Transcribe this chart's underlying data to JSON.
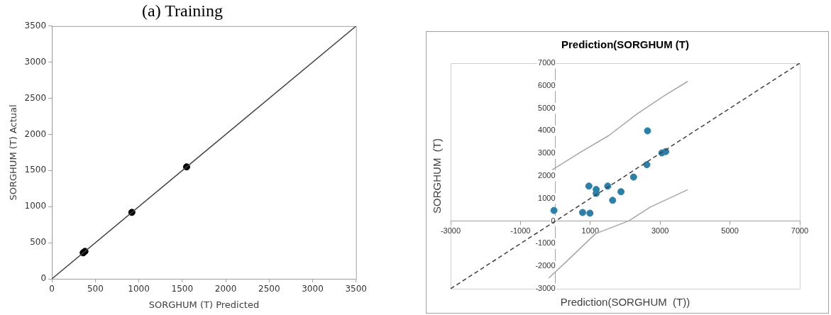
{
  "chart_data": [
    {
      "type": "scatter",
      "title": "(a) Training",
      "xlabel": "SORGHUM (T) Predicted",
      "ylabel": "SORGHUM (T) Actual",
      "xlim": [
        0,
        3500
      ],
      "ylim": [
        0,
        3500
      ],
      "xticks": [
        0,
        500,
        1000,
        1500,
        2000,
        2500,
        3000,
        3500
      ],
      "yticks": [
        0,
        500,
        1000,
        1500,
        2000,
        2500,
        3000,
        3500
      ],
      "grid": false,
      "legend": false,
      "marker": "circle",
      "series": [
        {
          "type": "line",
          "color": "#404040",
          "x": [
            0,
            3500
          ],
          "values": [
            0,
            3500
          ],
          "marker": "none",
          "line_style": "solid"
        },
        {
          "type": "scatter",
          "color": "#000000",
          "x": [
            360,
            380,
            920,
            1550
          ],
          "values": [
            360,
            380,
            920,
            1550
          ]
        }
      ]
    },
    {
      "type": "scatter",
      "title": "Prediction(SORGHUM (T)",
      "xlabel": "Prediction(SORGHUM  (T))",
      "ylabel": "SORGHUM  (T)",
      "xlim": [
        -3000,
        7000
      ],
      "ylim": [
        -3000,
        7000
      ],
      "xticks": [
        -3000,
        -1000,
        1000,
        3000,
        5000,
        7000
      ],
      "yticks": [
        -3000,
        -2000,
        -1000,
        0,
        1000,
        2000,
        3000,
        4000,
        5000,
        6000,
        7000
      ],
      "grid": false,
      "legend": false,
      "marker": "circle",
      "series": [
        {
          "type": "line",
          "color": "#404040",
          "x": [
            -3000,
            7000
          ],
          "values": [
            -3000,
            7000
          ],
          "marker": "none",
          "line_style": "dashed"
        },
        {
          "type": "line",
          "color": "#a6a6a6",
          "x": [
            -90,
            760,
            1540,
            2330,
            3120,
            3790
          ],
          "values": [
            2270,
            3090,
            3800,
            4740,
            5560,
            6190
          ],
          "marker": "none",
          "line_style": "solid"
        },
        {
          "type": "line",
          "color": "#a6a6a6",
          "x": [
            -190,
            360,
            1150,
            2090,
            2720,
            3790
          ],
          "values": [
            -2530,
            -1730,
            -560,
            0,
            620,
            1390
          ],
          "marker": "none",
          "line_style": "solid"
        },
        {
          "type": "scatter",
          "color": "#2e7fa5",
          "x": [
            -40,
            780,
            990,
            960,
            1170,
            1170,
            1500,
            1640,
            1880,
            2240,
            2620,
            2640,
            3050,
            3160
          ],
          "values": [
            470,
            380,
            350,
            1550,
            1400,
            1230,
            1550,
            920,
            1300,
            1950,
            2500,
            4000,
            3020,
            3080
          ]
        }
      ]
    }
  ]
}
